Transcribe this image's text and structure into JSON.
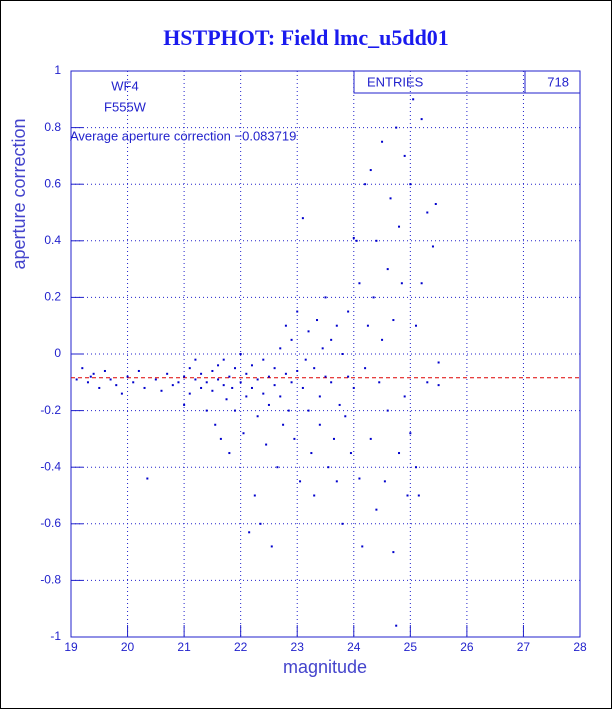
{
  "chart_data": {
    "type": "scatter",
    "title": "HSTPHOT: Field lmc_u5dd01",
    "x_label": "magnitude",
    "y_label": "aperture correction",
    "annotations": [
      "WF4",
      "F555W",
      "Average aperture correction −0.083719"
    ],
    "stats": {
      "label": "ENTRIES",
      "value": 718
    },
    "reference_line": -0.083719,
    "reference_color": "#dd0000",
    "xlim": [
      19,
      28
    ],
    "xticks": [
      19,
      20,
      21,
      22,
      23,
      24,
      25,
      26,
      27,
      28
    ],
    "ylim": [
      -1,
      1
    ],
    "yticks": [
      -1,
      -0.8,
      -0.6,
      -0.4,
      -0.2,
      0,
      0.2,
      0.4,
      0.6,
      0.8,
      1
    ],
    "grid": true,
    "series": [
      {
        "color": "#0000cc",
        "x": [
          19.1,
          19.2,
          19.3,
          19.35,
          19.4,
          19.5,
          19.6,
          19.7,
          19.8,
          19.9,
          20.0,
          20.1,
          20.2,
          20.3,
          20.35,
          20.5,
          20.6,
          20.7,
          20.8,
          20.9,
          21.0,
          21.0,
          21.1,
          21.1,
          21.2,
          21.2,
          21.3,
          21.3,
          21.4,
          21.4,
          21.5,
          21.5,
          21.55,
          21.6,
          21.6,
          21.65,
          21.7,
          21.7,
          21.75,
          21.8,
          21.8,
          21.85,
          21.9,
          21.9,
          22.0,
          22.0,
          22.05,
          22.1,
          22.1,
          22.15,
          22.2,
          22.2,
          22.25,
          22.3,
          22.3,
          22.35,
          22.4,
          22.4,
          22.45,
          22.5,
          22.5,
          22.55,
          22.6,
          22.6,
          22.65,
          22.7,
          22.7,
          22.75,
          22.8,
          22.8,
          22.85,
          22.9,
          22.9,
          22.95,
          23.0,
          23.0,
          23.05,
          23.1,
          23.1,
          23.15,
          23.2,
          23.2,
          23.25,
          23.3,
          23.3,
          23.35,
          23.4,
          23.4,
          23.45,
          23.5,
          23.5,
          23.55,
          23.6,
          23.6,
          23.65,
          23.7,
          23.7,
          23.75,
          23.8,
          23.8,
          23.85,
          23.9,
          23.9,
          23.95,
          24.0,
          24.0,
          24.05,
          24.1,
          24.1,
          24.15,
          24.2,
          24.2,
          24.25,
          24.3,
          24.3,
          24.35,
          24.4,
          24.4,
          24.45,
          24.5,
          24.5,
          24.55,
          24.6,
          24.6,
          24.65,
          24.7,
          24.7,
          24.75,
          24.75,
          24.8,
          24.8,
          24.85,
          24.9,
          24.9,
          24.95,
          25.0,
          25.0,
          25.05,
          25.1,
          25.1,
          25.2,
          25.2,
          25.3,
          25.3,
          25.4,
          25.45,
          25.5,
          25.5,
          25.15
        ],
        "values": [
          -0.09,
          -0.05,
          -0.1,
          -0.08,
          -0.07,
          -0.12,
          -0.06,
          -0.09,
          -0.11,
          -0.14,
          -0.08,
          -0.1,
          -0.06,
          -0.12,
          -0.44,
          -0.09,
          -0.13,
          -0.07,
          -0.11,
          -0.1,
          -0.08,
          -0.18,
          -0.05,
          -0.14,
          -0.09,
          -0.02,
          -0.12,
          -0.07,
          -0.1,
          -0.2,
          -0.06,
          -0.13,
          -0.25,
          -0.04,
          -0.09,
          -0.3,
          -0.11,
          -0.02,
          -0.16,
          -0.08,
          -0.35,
          -0.12,
          -0.05,
          -0.2,
          -0.1,
          0.0,
          -0.28,
          -0.07,
          -0.15,
          -0.63,
          -0.04,
          -0.12,
          -0.5,
          -0.09,
          -0.22,
          -0.6,
          -0.02,
          -0.14,
          -0.32,
          -0.08,
          -0.18,
          -0.68,
          -0.05,
          -0.11,
          -0.4,
          0.02,
          -0.15,
          -0.25,
          -0.07,
          0.1,
          -0.2,
          -0.1,
          0.05,
          -0.3,
          -0.06,
          0.15,
          -0.45,
          0.48,
          -0.12,
          -0.02,
          -0.2,
          0.08,
          -0.35,
          -0.05,
          -0.5,
          0.12,
          -0.15,
          -0.25,
          0.02,
          -0.08,
          0.2,
          -0.4,
          -0.1,
          0.05,
          -0.3,
          -0.45,
          0.1,
          -0.18,
          -0.6,
          0.0,
          -0.22,
          0.15,
          -0.08,
          -0.35,
          0.41,
          -0.12,
          0.4,
          -0.44,
          0.25,
          -0.68,
          0.6,
          -0.05,
          0.1,
          -0.3,
          0.65,
          0.2,
          -0.55,
          0.4,
          -0.1,
          0.75,
          0.05,
          -0.45,
          0.3,
          -0.2,
          0.55,
          -0.7,
          0.12,
          0.8,
          -0.96,
          -0.35,
          0.45,
          0.25,
          -0.15,
          0.7,
          -0.5,
          0.6,
          -0.28,
          0.9,
          0.1,
          -0.4,
          0.83,
          0.25,
          0.5,
          -0.1,
          0.38,
          0.53,
          -0.11,
          -0.03,
          -0.5
        ]
      }
    ]
  }
}
